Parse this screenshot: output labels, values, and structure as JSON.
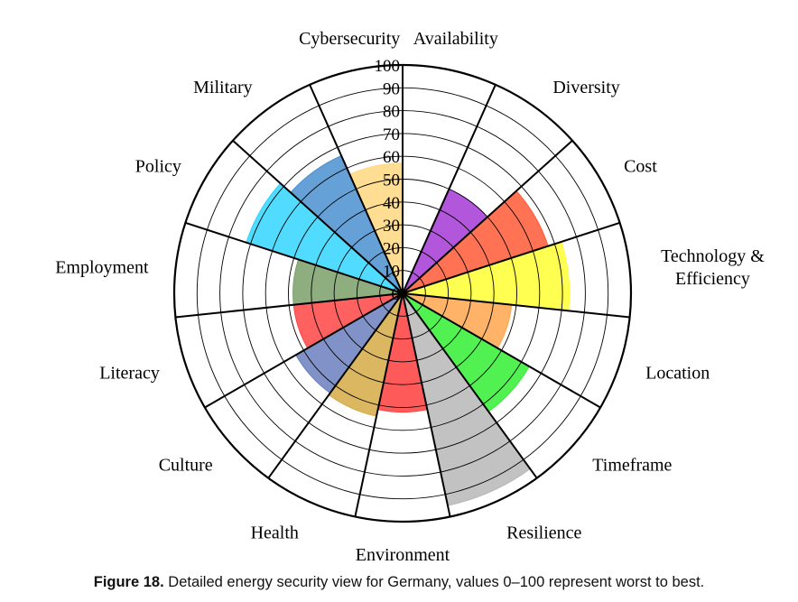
{
  "chart_data": {
    "type": "polar-area",
    "title": "",
    "radial_range": [
      0,
      100
    ],
    "radial_ticks": [
      0,
      10,
      20,
      30,
      40,
      50,
      60,
      70,
      80,
      90,
      100
    ],
    "grid": true,
    "sectors": [
      {
        "name": "Availability",
        "value": 0,
        "color": "#ffffff"
      },
      {
        "name": "Diversity",
        "value": 50,
        "color": "#a43ad6"
      },
      {
        "name": "Cost",
        "value": 67,
        "color": "#ff5a36"
      },
      {
        "name": "Technology & Efficiency",
        "lines": [
          "Technology &",
          "Efficiency"
        ],
        "value": 73,
        "color": "#ffff33"
      },
      {
        "name": "Location",
        "value": 48,
        "color": "#ffa64d"
      },
      {
        "name": "Timeframe",
        "value": 64,
        "color": "#33ee33"
      },
      {
        "name": "Resilience",
        "value": 95,
        "color": "#b7b7b7"
      },
      {
        "name": "Environment",
        "value": 52,
        "color": "#ff3d3d"
      },
      {
        "name": "Health",
        "value": 55,
        "color": "#d4aa44"
      },
      {
        "name": "Culture",
        "value": 54,
        "color": "#6a7fbd"
      },
      {
        "name": "Literacy",
        "value": 48,
        "color": "#ff4444"
      },
      {
        "name": "Employment",
        "value": 48,
        "color": "#7aa06a"
      },
      {
        "name": "Policy",
        "value": 72,
        "color": "#33d6ff"
      },
      {
        "name": "Military",
        "value": 66,
        "color": "#4a90d0"
      },
      {
        "name": "Cybersecurity",
        "value": 57,
        "color": "#ffd880"
      }
    ]
  },
  "caption": {
    "label": "Figure 18.",
    "text": "Detailed energy security view for Germany, values 0–100 represent worst to best."
  }
}
